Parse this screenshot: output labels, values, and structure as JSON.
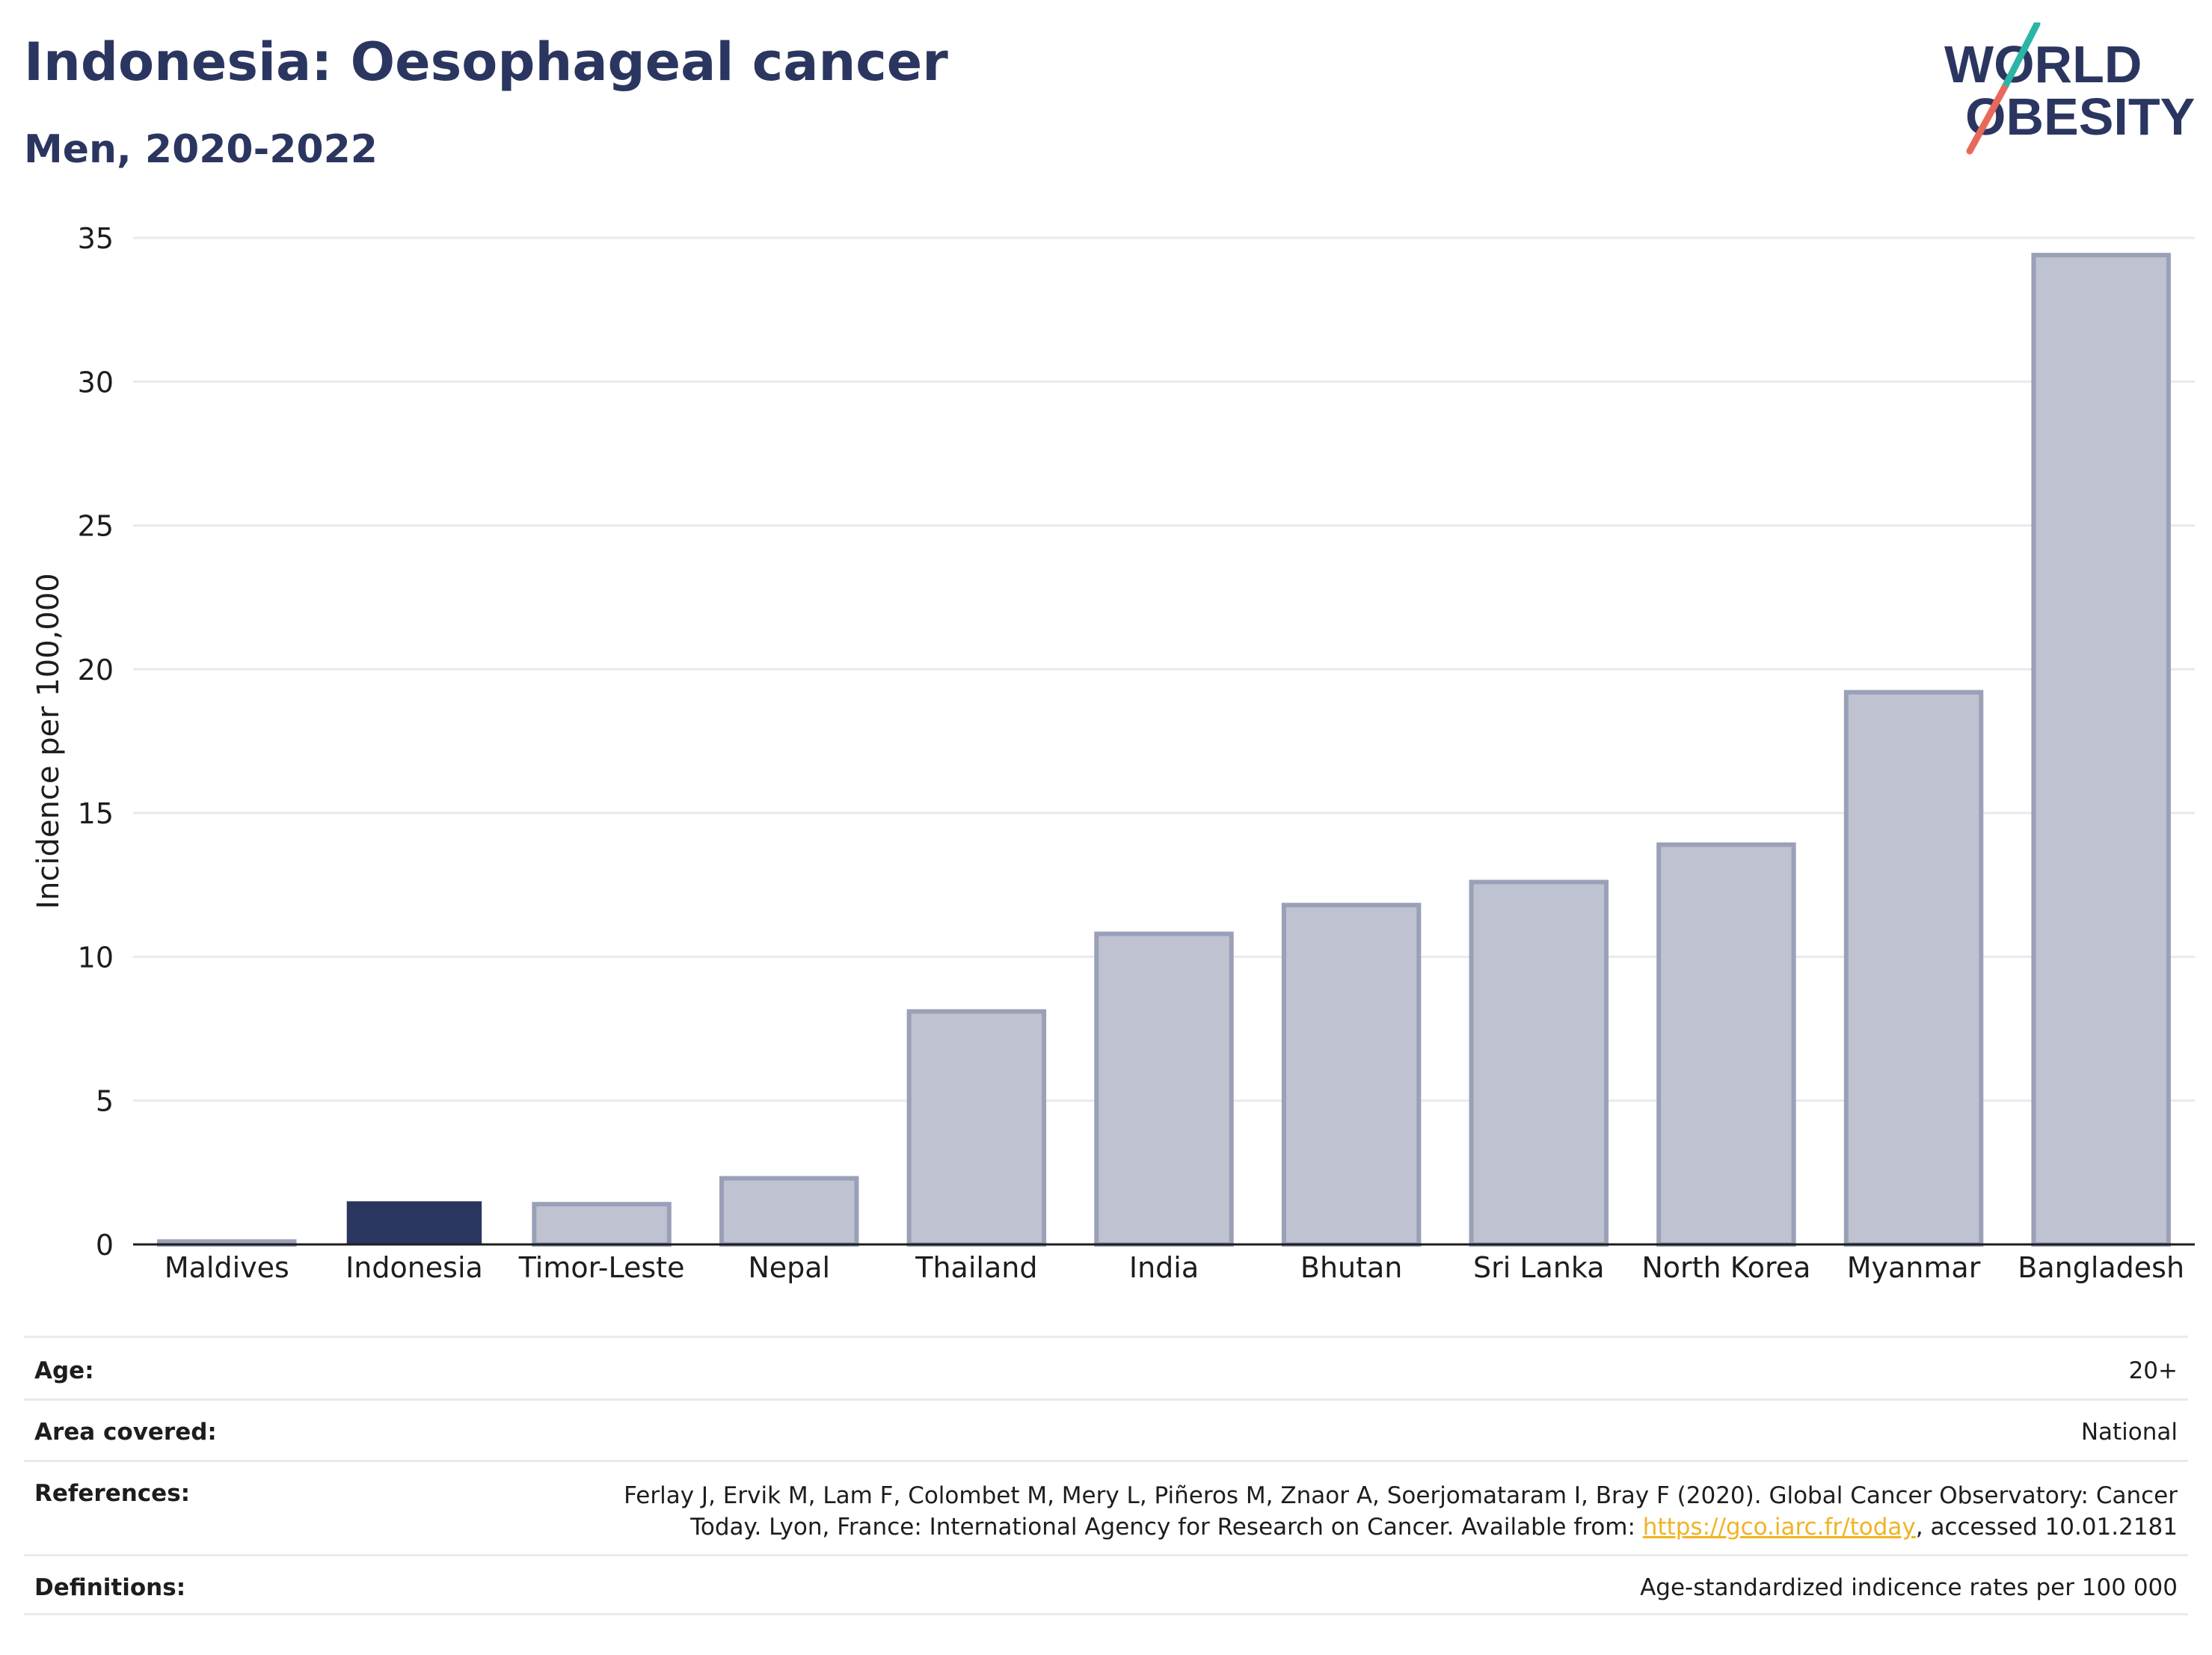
{
  "title": "Indonesia: Oesophageal cancer",
  "subtitle": "Men, 2020-2022",
  "logo": {
    "line1": "WORLD",
    "line2": "OBESITY",
    "accent_teal": "#2bb5a6",
    "accent_coral": "#e8685a"
  },
  "colors": {
    "highlight": "#2b3660",
    "bar_fill": "#bec2d1",
    "bar_stroke": "#9aa0b7",
    "title": "#2b3660",
    "link": "#f0b323"
  },
  "chart_data": {
    "type": "bar",
    "categories": [
      "Maldives",
      "Indonesia",
      "Timor-Leste",
      "Nepal",
      "Thailand",
      "India",
      "Bhutan",
      "Sri Lanka",
      "North Korea",
      "Myanmar",
      "Bangladesh"
    ],
    "values": [
      0.1,
      1.5,
      1.4,
      2.3,
      8.1,
      10.8,
      11.8,
      12.6,
      13.9,
      19.2,
      34.4
    ],
    "highlight": "Indonesia",
    "ylabel": "Incidence per 100,000",
    "xlabel": "",
    "ylim": [
      0,
      35
    ],
    "yticks": [
      0,
      5,
      10,
      15,
      20,
      25,
      30,
      35
    ],
    "grid": true
  },
  "meta": {
    "age": {
      "label": "Age:",
      "value": "20+"
    },
    "area": {
      "label": "Area covered:",
      "value": "National"
    },
    "references": {
      "label": "References:",
      "line1": "Ferlay J, Ervik M, Lam F, Colombet M, Mery L, Piñeros M, Znaor A, Soerjomataram I, Bray F (2020). Global Cancer Observatory: Cancer",
      "line2_prefix": "Today. Lyon, France: International Agency for Research on Cancer. Available from: ",
      "link": "https://gco.iarc.fr/today",
      "line2_suffix": ", accessed 10.01.2181"
    },
    "definitions": {
      "label": "Definitions:",
      "value": "Age-standardized indicence rates per 100 000"
    }
  }
}
